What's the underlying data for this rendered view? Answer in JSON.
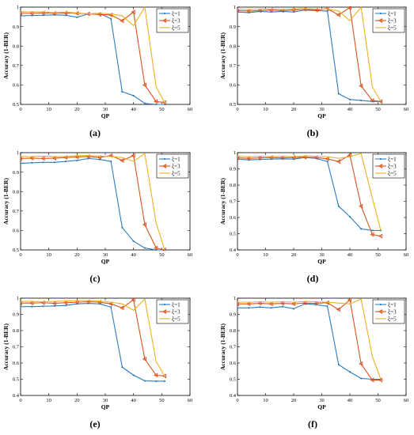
{
  "chart_data": [
    {
      "type": "line",
      "panel_label": "(a)",
      "xlabel": "QP",
      "ylabel": "Accuracy (1-BER)",
      "xlim": [
        0,
        60
      ],
      "ylim": [
        0.5,
        1
      ],
      "xticks": [
        "0",
        "10",
        "20",
        "30",
        "40",
        "50",
        "60"
      ],
      "yticks": [
        "0.5",
        "0.6",
        "0.7",
        "0.8",
        "0.9",
        "1"
      ],
      "legend_position": "top-right",
      "series": [
        {
          "name": "ξ=1",
          "color": "#2e7bbf",
          "marker": "point",
          "x": [
            0,
            4,
            8,
            12,
            16,
            20,
            24,
            28,
            32,
            36,
            40,
            44,
            48,
            51
          ],
          "y": [
            0.955,
            0.957,
            0.958,
            0.96,
            0.958,
            0.948,
            0.965,
            0.968,
            0.94,
            0.565,
            0.545,
            0.505,
            0.5,
            0.5
          ]
        },
        {
          "name": "ξ=3",
          "color": "#d9531e",
          "marker": "triangle",
          "x": [
            0,
            4,
            8,
            12,
            16,
            20,
            24,
            28,
            32,
            36,
            40,
            44,
            48,
            51
          ],
          "y": [
            0.968,
            0.968,
            0.97,
            0.968,
            0.97,
            0.968,
            0.965,
            0.962,
            0.96,
            0.93,
            0.975,
            0.6,
            0.515,
            0.51
          ]
        },
        {
          "name": "ξ=5",
          "color": "#edb120",
          "marker": "none",
          "x": [
            0,
            4,
            8,
            12,
            16,
            20,
            24,
            28,
            32,
            36,
            40,
            44,
            48,
            51
          ],
          "y": [
            0.975,
            0.976,
            0.975,
            0.972,
            0.975,
            0.97,
            0.965,
            0.968,
            0.965,
            0.955,
            0.905,
            1.0,
            0.59,
            0.51
          ]
        }
      ]
    },
    {
      "type": "line",
      "panel_label": "(b)",
      "xlabel": "QP",
      "ylabel": "Accuracy (1-BER)",
      "xlim": [
        0,
        60
      ],
      "ylim": [
        0.5,
        1
      ],
      "xticks": [
        "0",
        "10",
        "20",
        "30",
        "40",
        "50",
        "60"
      ],
      "yticks": [
        "0.5",
        "0.6",
        "0.7",
        "0.8",
        "0.9",
        "1"
      ],
      "legend_position": "top-right",
      "series": [
        {
          "name": "ξ=1",
          "color": "#2e7bbf",
          "marker": "point",
          "x": [
            0,
            4,
            8,
            12,
            16,
            20,
            24,
            28,
            32,
            36,
            40,
            44,
            48,
            51
          ],
          "y": [
            0.975,
            0.972,
            0.978,
            0.975,
            0.978,
            0.975,
            0.985,
            0.982,
            0.98,
            0.555,
            0.525,
            0.52,
            0.515,
            0.515
          ]
        },
        {
          "name": "ξ=3",
          "color": "#d9531e",
          "marker": "triangle",
          "x": [
            0,
            4,
            8,
            12,
            16,
            20,
            24,
            28,
            32,
            36,
            40,
            44,
            48,
            51
          ],
          "y": [
            0.982,
            0.98,
            0.982,
            0.985,
            0.982,
            0.985,
            0.99,
            0.985,
            0.992,
            0.96,
            0.998,
            0.595,
            0.52,
            0.515
          ]
        },
        {
          "name": "ξ=5",
          "color": "#edb120",
          "marker": "none",
          "x": [
            0,
            4,
            8,
            12,
            16,
            20,
            24,
            28,
            32,
            36,
            40,
            44,
            48,
            51
          ],
          "y": [
            0.99,
            0.988,
            0.99,
            0.99,
            0.988,
            0.99,
            0.992,
            0.99,
            0.99,
            0.98,
            0.93,
            1.0,
            0.59,
            0.515
          ]
        }
      ]
    },
    {
      "type": "line",
      "panel_label": "(c)",
      "xlabel": "QP",
      "ylabel": "Accuracy (1-BER)",
      "xlim": [
        0,
        60
      ],
      "ylim": [
        0.5,
        1
      ],
      "xticks": [
        "0",
        "10",
        "20",
        "30",
        "40",
        "50",
        "60"
      ],
      "yticks": [
        "0.5",
        "0.6",
        "0.7",
        "0.8",
        "0.9",
        "1"
      ],
      "legend_position": "top-right",
      "series": [
        {
          "name": "ξ=1",
          "color": "#2e7bbf",
          "marker": "point",
          "x": [
            0,
            4,
            8,
            12,
            16,
            20,
            24,
            28,
            32,
            36,
            40,
            44,
            48,
            51
          ],
          "y": [
            0.945,
            0.948,
            0.95,
            0.95,
            0.955,
            0.96,
            0.97,
            0.965,
            0.955,
            0.615,
            0.545,
            0.51,
            0.5,
            0.5
          ]
        },
        {
          "name": "ξ=3",
          "color": "#d9531e",
          "marker": "triangle",
          "x": [
            0,
            4,
            8,
            12,
            16,
            20,
            24,
            28,
            32,
            36,
            40,
            44,
            48,
            51
          ],
          "y": [
            0.97,
            0.972,
            0.97,
            0.972,
            0.975,
            0.978,
            0.98,
            0.975,
            0.985,
            0.96,
            0.985,
            0.63,
            0.51,
            0.5
          ]
        },
        {
          "name": "ξ=5",
          "color": "#edb120",
          "marker": "none",
          "x": [
            0,
            4,
            8,
            12,
            16,
            20,
            24,
            28,
            32,
            36,
            40,
            44,
            48,
            51
          ],
          "y": [
            0.98,
            0.98,
            0.982,
            0.98,
            0.98,
            0.985,
            0.985,
            0.982,
            0.98,
            0.975,
            0.955,
            0.995,
            0.64,
            0.5
          ]
        }
      ]
    },
    {
      "type": "line",
      "panel_label": "(d)",
      "xlabel": "QP",
      "ylabel": "Accuracy (1-BER)",
      "xlim": [
        0,
        60
      ],
      "ylim": [
        0.4,
        1
      ],
      "xticks": [
        "0",
        "10",
        "20",
        "30",
        "40",
        "50",
        "60"
      ],
      "yticks": [
        "0.4",
        "0.5",
        "0.6",
        "0.7",
        "0.8",
        "0.9",
        "1"
      ],
      "legend_position": "top-right",
      "series": [
        {
          "name": "ξ=1",
          "color": "#2e7bbf",
          "marker": "point",
          "x": [
            0,
            4,
            8,
            12,
            16,
            20,
            24,
            28,
            32,
            36,
            40,
            44,
            48,
            51
          ],
          "y": [
            0.96,
            0.955,
            0.958,
            0.96,
            0.962,
            0.96,
            0.97,
            0.965,
            0.945,
            0.67,
            0.605,
            0.53,
            0.52,
            0.52
          ]
        },
        {
          "name": "ξ=3",
          "color": "#d9531e",
          "marker": "triangle",
          "x": [
            0,
            4,
            8,
            12,
            16,
            20,
            24,
            28,
            32,
            36,
            40,
            44,
            48,
            51
          ],
          "y": [
            0.968,
            0.965,
            0.968,
            0.97,
            0.968,
            0.97,
            0.972,
            0.97,
            0.962,
            0.945,
            0.985,
            0.67,
            0.495,
            0.485
          ]
        },
        {
          "name": "ξ=5",
          "color": "#edb120",
          "marker": "none",
          "x": [
            0,
            4,
            8,
            12,
            16,
            20,
            24,
            28,
            32,
            36,
            40,
            44,
            48,
            51
          ],
          "y": [
            0.978,
            0.975,
            0.978,
            0.975,
            0.978,
            0.975,
            0.98,
            0.978,
            0.975,
            0.965,
            0.975,
            0.995,
            0.72,
            0.52
          ]
        }
      ]
    },
    {
      "type": "line",
      "panel_label": "(e)",
      "xlabel": "QP",
      "ylabel": "Accuracy (1-BER)",
      "xlim": [
        0,
        60
      ],
      "ylim": [
        0.4,
        1
      ],
      "xticks": [
        "0",
        "10",
        "20",
        "30",
        "40",
        "50",
        "60"
      ],
      "yticks": [
        "0.4",
        "0.5",
        "0.6",
        "0.7",
        "0.8",
        "0.9",
        "1"
      ],
      "legend_position": "top-right",
      "series": [
        {
          "name": "ξ=1",
          "color": "#2e7bbf",
          "marker": "point",
          "x": [
            0,
            4,
            8,
            12,
            16,
            20,
            24,
            28,
            32,
            36,
            40,
            44,
            48,
            51
          ],
          "y": [
            0.948,
            0.948,
            0.95,
            0.952,
            0.955,
            0.965,
            0.968,
            0.965,
            0.945,
            0.575,
            0.525,
            0.49,
            0.488,
            0.488
          ]
        },
        {
          "name": "ξ=3",
          "color": "#d9531e",
          "marker": "triangle",
          "x": [
            0,
            4,
            8,
            12,
            16,
            20,
            24,
            28,
            32,
            36,
            40,
            44,
            48,
            51
          ],
          "y": [
            0.97,
            0.97,
            0.972,
            0.968,
            0.972,
            0.975,
            0.978,
            0.975,
            0.965,
            0.94,
            0.99,
            0.625,
            0.525,
            0.52
          ]
        },
        {
          "name": "ξ=5",
          "color": "#edb120",
          "marker": "none",
          "x": [
            0,
            4,
            8,
            12,
            16,
            20,
            24,
            28,
            32,
            36,
            40,
            44,
            48,
            51
          ],
          "y": [
            0.98,
            0.98,
            0.978,
            0.98,
            0.982,
            0.985,
            0.985,
            0.982,
            0.975,
            0.965,
            0.925,
            0.995,
            0.61,
            0.52
          ]
        }
      ]
    },
    {
      "type": "line",
      "panel_label": "(f)",
      "xlabel": "QP",
      "ylabel": "Accuracy (1-BER)",
      "xlim": [
        0,
        60
      ],
      "ylim": [
        0.4,
        1
      ],
      "xticks": [
        "0",
        "10",
        "20",
        "30",
        "40",
        "50",
        "60"
      ],
      "yticks": [
        "0.4",
        "0.5",
        "0.6",
        "0.7",
        "0.8",
        "0.9",
        "1"
      ],
      "legend_position": "top-right",
      "series": [
        {
          "name": "ξ=1",
          "color": "#2e7bbf",
          "marker": "point",
          "x": [
            0,
            4,
            8,
            12,
            16,
            20,
            24,
            28,
            32,
            36,
            40,
            44,
            48,
            51
          ],
          "y": [
            0.94,
            0.94,
            0.945,
            0.94,
            0.948,
            0.935,
            0.965,
            0.96,
            0.95,
            0.59,
            0.545,
            0.505,
            0.5,
            0.5
          ]
        },
        {
          "name": "ξ=3",
          "color": "#d9531e",
          "marker": "triangle",
          "x": [
            0,
            4,
            8,
            12,
            16,
            20,
            24,
            28,
            32,
            36,
            40,
            44,
            48,
            51
          ],
          "y": [
            0.965,
            0.965,
            0.968,
            0.965,
            0.968,
            0.965,
            0.97,
            0.968,
            0.972,
            0.93,
            0.99,
            0.595,
            0.495,
            0.495
          ]
        },
        {
          "name": "ξ=5",
          "color": "#edb120",
          "marker": "none",
          "x": [
            0,
            4,
            8,
            12,
            16,
            20,
            24,
            28,
            32,
            36,
            40,
            44,
            48,
            51
          ],
          "y": [
            0.975,
            0.975,
            0.978,
            0.975,
            0.978,
            0.975,
            0.98,
            0.978,
            0.975,
            0.97,
            0.965,
            0.995,
            0.64,
            0.5
          ]
        }
      ]
    }
  ]
}
